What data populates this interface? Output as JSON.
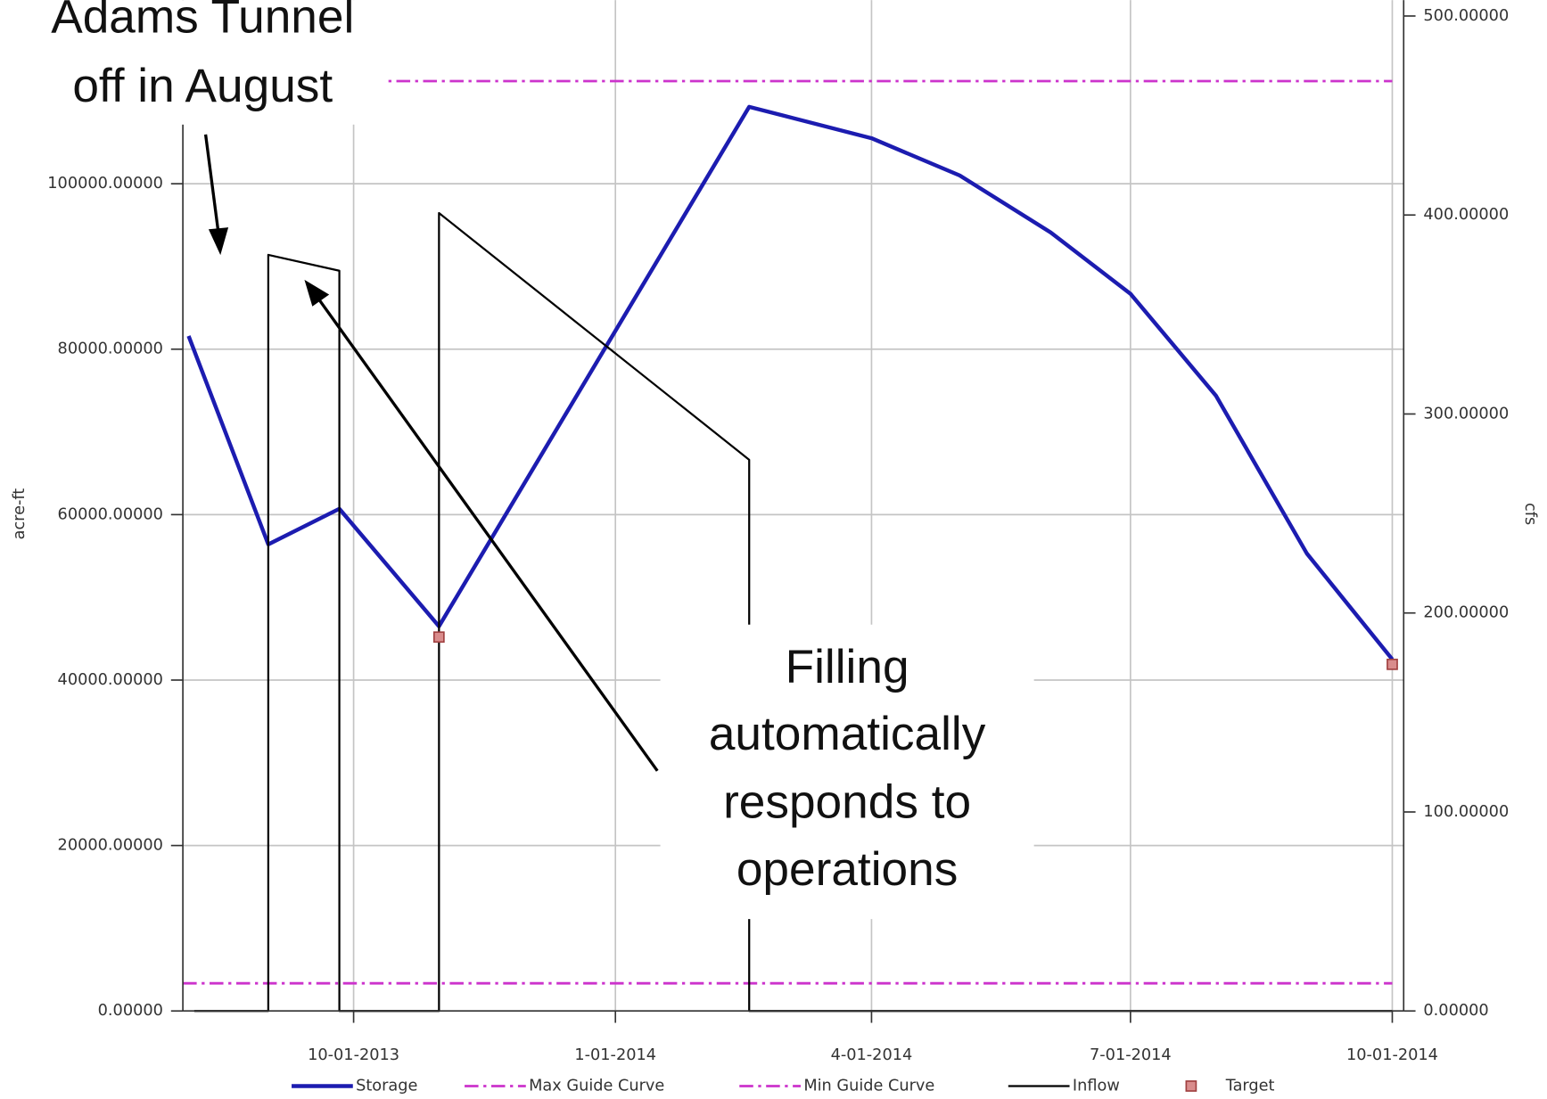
{
  "chart_data": {
    "type": "line",
    "y_label": "acre-ft",
    "y2_label": "cfs",
    "xlim": [
      "2013-08-02",
      "2014-10-05"
    ],
    "xticks": [
      {
        "value": "2013-10-01",
        "label": "10-01-2013"
      },
      {
        "value": "2014-01-01",
        "label": "1-01-2014"
      },
      {
        "value": "2014-04-01",
        "label": "4-01-2014"
      },
      {
        "value": "2014-07-01",
        "label": "7-01-2014"
      },
      {
        "value": "2014-10-01",
        "label": "10-01-2014"
      }
    ],
    "ylim": [
      0,
      122200
    ],
    "yticks": [
      {
        "value": 0,
        "label": "0.00000"
      },
      {
        "value": 20000,
        "label": "20000.00000"
      },
      {
        "value": 40000,
        "label": "40000.00000"
      },
      {
        "value": 60000,
        "label": "60000.00000"
      },
      {
        "value": 80000,
        "label": "80000.00000"
      },
      {
        "value": 100000,
        "label": "100000.00000"
      }
    ],
    "y2lim": [
      0,
      508
    ],
    "y2ticks": [
      {
        "value": 0,
        "label": "0.00000"
      },
      {
        "value": 100,
        "label": "100.00000"
      },
      {
        "value": 200,
        "label": "200.00000"
      },
      {
        "value": 300,
        "label": "300.00000"
      },
      {
        "value": 400,
        "label": "400.00000"
      },
      {
        "value": 500,
        "label": "500.00000"
      }
    ],
    "grid": true,
    "legend": "bottom",
    "series": [
      {
        "name": "Storage",
        "color": "#1c1cb0",
        "style": "solid",
        "width": 4,
        "x": [
          "2013-08-04",
          "2013-09-01",
          "2013-09-26",
          "2013-10-31",
          "2014-02-17",
          "2014-04-01",
          "2014-05-02",
          "2014-06-03",
          "2014-07-01",
          "2014-07-31",
          "2014-09-01",
          "2014-10-01"
        ],
        "values": [
          81600,
          56400,
          60700,
          46500,
          109300,
          105500,
          101000,
          94100,
          86700,
          74400,
          55300,
          42500
        ]
      },
      {
        "name": "Max Guide Curve",
        "color": "#cc33cc",
        "style": "dashdot",
        "width": 2.5,
        "x": [
          "2013-08-02",
          "2014-10-01"
        ],
        "values": [
          112400,
          112400
        ]
      },
      {
        "name": "Min Guide Curve",
        "color": "#cc33cc",
        "style": "dashdot",
        "width": 2.5,
        "x": [
          "2013-08-02",
          "2014-10-01"
        ],
        "values": [
          3350,
          3350
        ]
      },
      {
        "name": "Inflow",
        "color": "#000000",
        "style": "solid",
        "width": 2,
        "axis": "y2",
        "x": [
          "2013-08-06",
          "2013-09-01",
          "2013-09-01",
          "2013-09-26",
          "2013-09-26",
          "2013-10-31",
          "2013-10-31",
          "2014-02-17",
          "2014-02-17",
          "2014-10-01"
        ],
        "values": [
          0,
          0,
          380,
          372,
          0,
          0,
          401,
          277,
          0,
          0
        ]
      },
      {
        "name": "Target",
        "color": "#d98c8c",
        "style": "marker",
        "x": [
          "2013-10-31",
          "2014-10-01"
        ],
        "values": [
          45200,
          41900
        ]
      }
    ],
    "annotations": [
      {
        "lines": [
          "Adams Tunnel",
          "off in August"
        ]
      },
      {
        "lines": [
          "Filling",
          "automatically",
          "responds to",
          "operations"
        ]
      }
    ]
  }
}
